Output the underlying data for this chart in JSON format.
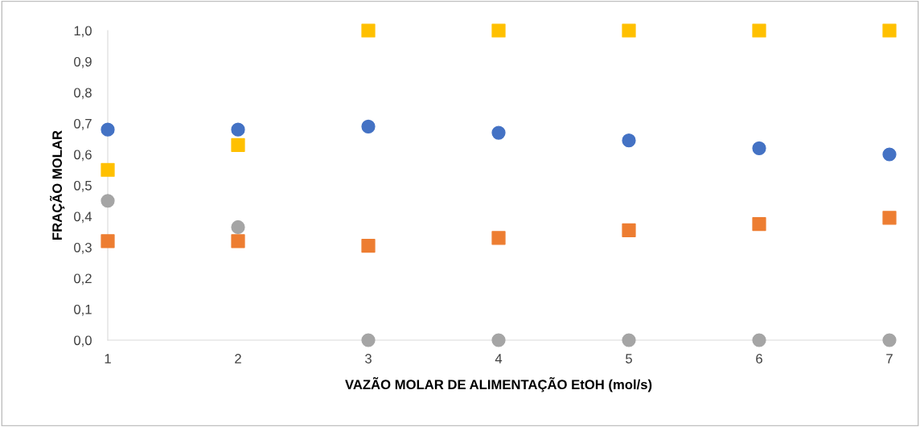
{
  "chart_data": {
    "type": "scatter",
    "xlabel": "VAZÃO MOLAR DE ALIMENTAÇÃO EtOH (mol/s)",
    "ylabel": "FRAÇÃO MOLAR",
    "x": [
      1,
      2,
      3,
      4,
      5,
      6,
      7
    ],
    "series": [
      {
        "color": "#4472c4",
        "marker": "circle",
        "values": [
          0.68,
          0.68,
          0.69,
          0.67,
          0.645,
          0.62,
          0.6
        ]
      },
      {
        "color": "#ed7d31",
        "marker": "square",
        "values": [
          0.32,
          0.32,
          0.305,
          0.33,
          0.355,
          0.375,
          0.395
        ]
      },
      {
        "color": "#a5a5a5",
        "marker": "circle",
        "values": [
          0.45,
          0.365,
          0.0,
          0.0,
          0.0,
          0.0,
          0.0
        ]
      },
      {
        "color": "#ffc000",
        "marker": "square",
        "values": [
          0.55,
          0.63,
          1.0,
          1.0,
          1.0,
          1.0,
          1.0
        ]
      }
    ],
    "xlim": [
      1,
      7
    ],
    "xticks": [
      1,
      2,
      3,
      4,
      5,
      6,
      7
    ],
    "ylim": [
      0,
      1
    ],
    "yticks": [
      {
        "value": 0,
        "label": "0,0"
      },
      {
        "value": 0.1,
        "label": "0,1"
      },
      {
        "value": 0.2,
        "label": "0,2"
      },
      {
        "value": 0.3,
        "label": "0,3"
      },
      {
        "value": 0.4,
        "label": "0,4"
      },
      {
        "value": 0.5,
        "label": "0,5"
      },
      {
        "value": 0.6,
        "label": "0,6"
      },
      {
        "value": 0.7,
        "label": "0,7"
      },
      {
        "value": 0.8,
        "label": "0,8"
      },
      {
        "value": 0.9,
        "label": "0,9"
      },
      {
        "value": 1.0,
        "label": "1,0"
      }
    ],
    "grid": false,
    "legend": false
  }
}
